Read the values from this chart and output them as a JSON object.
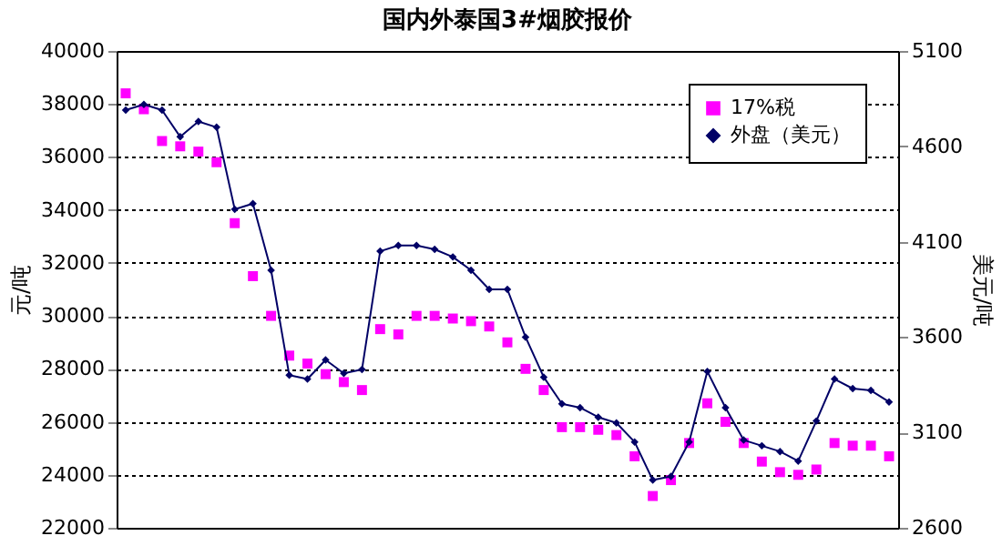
{
  "chart_data": {
    "type": "line",
    "title": "国内外泰国3#烟胶报价",
    "ylabel": "元/吨",
    "y2label": "美元/吨",
    "categories": [
      null,
      null,
      null,
      null,
      null,
      null,
      null,
      null,
      null,
      null,
      null,
      null,
      null,
      null,
      null,
      null,
      null,
      null,
      null,
      null,
      null,
      null,
      null,
      null,
      null,
      null,
      null,
      null,
      null,
      null,
      null,
      null,
      null,
      null,
      null,
      null,
      null,
      null,
      null,
      null,
      null,
      null,
      null
    ],
    "series": [
      {
        "name": "17%税",
        "type": "scatter",
        "marker": "square",
        "color": "#ff00ff",
        "values": [
          38400,
          37800,
          36600,
          36400,
          36200,
          35800,
          33500,
          31500,
          30000,
          28500,
          28200,
          27800,
          27500,
          27200,
          29500,
          29300,
          30000,
          30000,
          29900,
          29800,
          29600,
          29000,
          28000,
          27200,
          25800,
          25800,
          25700,
          25500,
          24700,
          23200,
          23800,
          25200,
          26700,
          26000,
          25200,
          24500,
          24100,
          24000,
          24200,
          25200,
          25100,
          25100,
          24700
        ]
      },
      {
        "name": "外盘（美元）",
        "marker": "diamond",
        "axis": "y2",
        "color": "#000066",
        "values": [
          4790,
          4820,
          4790,
          4650,
          4730,
          4700,
          4270,
          4300,
          3950,
          3400,
          3380,
          3480,
          3410,
          3430,
          4050,
          4080,
          4080,
          4060,
          4020,
          3950,
          3850,
          3850,
          3600,
          3390,
          3250,
          3230,
          3180,
          3150,
          3050,
          2850,
          2870,
          3050,
          3420,
          3230,
          3060,
          3030,
          3000,
          2950,
          3160,
          3380,
          3330,
          3320,
          3260
        ]
      }
    ],
    "ylim": [
      22000,
      40000
    ],
    "yticks": [
      22000,
      24000,
      26000,
      28000,
      30000,
      32000,
      34000,
      36000,
      38000,
      40000
    ],
    "y2lim": [
      2600,
      5100
    ],
    "y2ticks": [
      2600,
      3100,
      3600,
      4100,
      4600,
      5100
    ],
    "grid": true,
    "legend": "top right"
  }
}
